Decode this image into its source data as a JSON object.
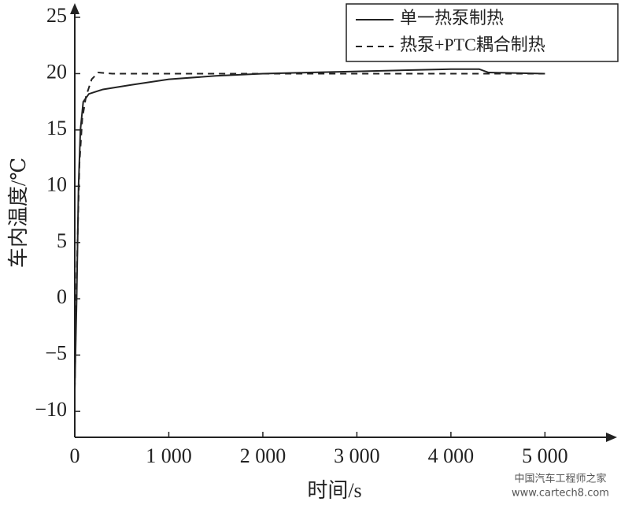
{
  "chart_data": {
    "type": "line",
    "x_label": "时间/s",
    "y_label": "车内温度/℃",
    "xlim": [
      0,
      5700
    ],
    "ylim": [
      -12.3,
      25.7
    ],
    "xticks": [
      0,
      {
        "value": 1000,
        "label": "1 000"
      },
      {
        "value": 2000,
        "label": "2 000"
      },
      {
        "value": 3000,
        "label": "3 000"
      },
      {
        "value": 4000,
        "label": "4 000"
      },
      {
        "value": 5000,
        "label": "5 000"
      }
    ],
    "yticks": [
      {
        "value": -10,
        "label": "−10"
      },
      {
        "value": -5,
        "label": "−5"
      },
      0,
      5,
      10,
      15,
      20,
      25
    ],
    "legend": "top-right",
    "series": [
      {
        "name": "单一热泵制热",
        "color": "#222222",
        "dash": false,
        "x": [
          0,
          20,
          40,
          60,
          90,
          150,
          300,
          600,
          1000,
          1500,
          2000,
          2500,
          3000,
          3500,
          4000,
          4300,
          4400,
          5000
        ],
        "values": [
          -8,
          0,
          10,
          15,
          17.5,
          18.2,
          18.6,
          19.0,
          19.5,
          19.8,
          20.0,
          20.1,
          20.2,
          20.3,
          20.4,
          20.4,
          20.1,
          20.0
        ]
      },
      {
        "name": "热泵+PTC耦合制热",
        "color": "#222222",
        "dash": true,
        "x": [
          0,
          20,
          50,
          80,
          120,
          180,
          250,
          400,
          1000,
          2000,
          3000,
          4000,
          5000
        ],
        "values": [
          -8,
          2,
          12,
          16,
          18,
          19.5,
          20.1,
          20.0,
          20.0,
          20.0,
          20.0,
          20.0,
          20.0
        ]
      }
    ],
    "watermark": [
      "中国汽车工程师之家",
      "www.cartech8.com"
    ]
  }
}
